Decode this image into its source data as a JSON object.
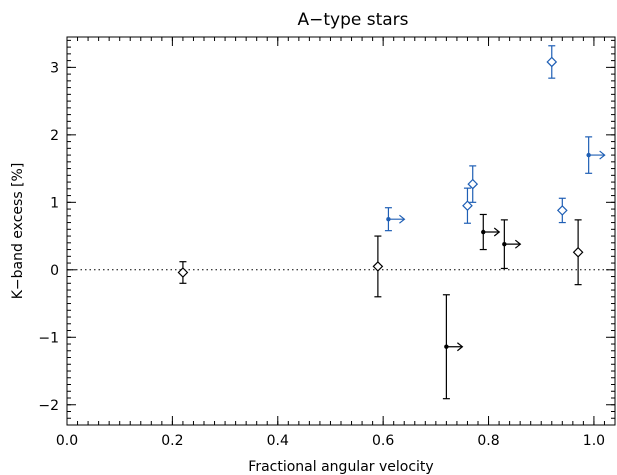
{
  "chart_data": {
    "type": "scatter",
    "title": "A−type stars",
    "xlabel": "Fractional angular velocity",
    "ylabel": "K−band excess [%]",
    "xlim": [
      0.0,
      1.04
    ],
    "ylim": [
      -2.3,
      3.45
    ],
    "x_ticks": [
      {
        "value": 0.0,
        "label": "0.0"
      },
      {
        "value": 0.2,
        "label": "0.2"
      },
      {
        "value": 0.4,
        "label": "0.4"
      },
      {
        "value": 0.6,
        "label": "0.6"
      },
      {
        "value": 0.8,
        "label": "0.8"
      },
      {
        "value": 1.0,
        "label": "1.0"
      }
    ],
    "y_ticks": [
      {
        "value": -2,
        "label": "−2"
      },
      {
        "value": -1,
        "label": "−1"
      },
      {
        "value": 0,
        "label": "0"
      },
      {
        "value": 1,
        "label": "1"
      },
      {
        "value": 2,
        "label": "2"
      },
      {
        "value": 3,
        "label": "3"
      }
    ],
    "x_minor_step": 0.02,
    "y_minor_step": 0.1,
    "reference_line": {
      "y": 0,
      "style": "dotted"
    },
    "grid": false,
    "colors": {
      "black": "#000000",
      "blue": "#1f5fb5"
    },
    "points": [
      {
        "x": 0.22,
        "y": -0.04,
        "yerr": 0.16,
        "marker": "diamond",
        "color": "black",
        "lower_limit": false
      },
      {
        "x": 0.59,
        "y": 0.05,
        "yerr": 0.45,
        "marker": "diamond",
        "color": "black",
        "lower_limit": false
      },
      {
        "x": 0.72,
        "y": -1.14,
        "yerr": 0.77,
        "marker": "dot",
        "color": "black",
        "lower_limit": true
      },
      {
        "x": 0.79,
        "y": 0.56,
        "yerr": 0.26,
        "marker": "dot",
        "color": "black",
        "lower_limit": true
      },
      {
        "x": 0.83,
        "y": 0.38,
        "yerr": 0.36,
        "marker": "dot",
        "color": "black",
        "lower_limit": true
      },
      {
        "x": 0.97,
        "y": 0.26,
        "yerr": 0.48,
        "marker": "diamond",
        "color": "black",
        "lower_limit": false
      },
      {
        "x": 0.61,
        "y": 0.75,
        "yerr": 0.17,
        "marker": "dot",
        "color": "blue",
        "lower_limit": true
      },
      {
        "x": 0.76,
        "y": 0.95,
        "yerr": 0.26,
        "marker": "diamond",
        "color": "blue",
        "lower_limit": false
      },
      {
        "x": 0.77,
        "y": 1.27,
        "yerr": 0.27,
        "marker": "diamond",
        "color": "blue",
        "lower_limit": false
      },
      {
        "x": 0.92,
        "y": 3.08,
        "yerr": 0.24,
        "marker": "diamond",
        "color": "blue",
        "lower_limit": false
      },
      {
        "x": 0.94,
        "y": 0.88,
        "yerr": 0.18,
        "marker": "diamond",
        "color": "blue",
        "lower_limit": false
      },
      {
        "x": 0.99,
        "y": 1.7,
        "yerr": 0.27,
        "marker": "dot",
        "color": "blue",
        "lower_limit": true
      }
    ]
  }
}
